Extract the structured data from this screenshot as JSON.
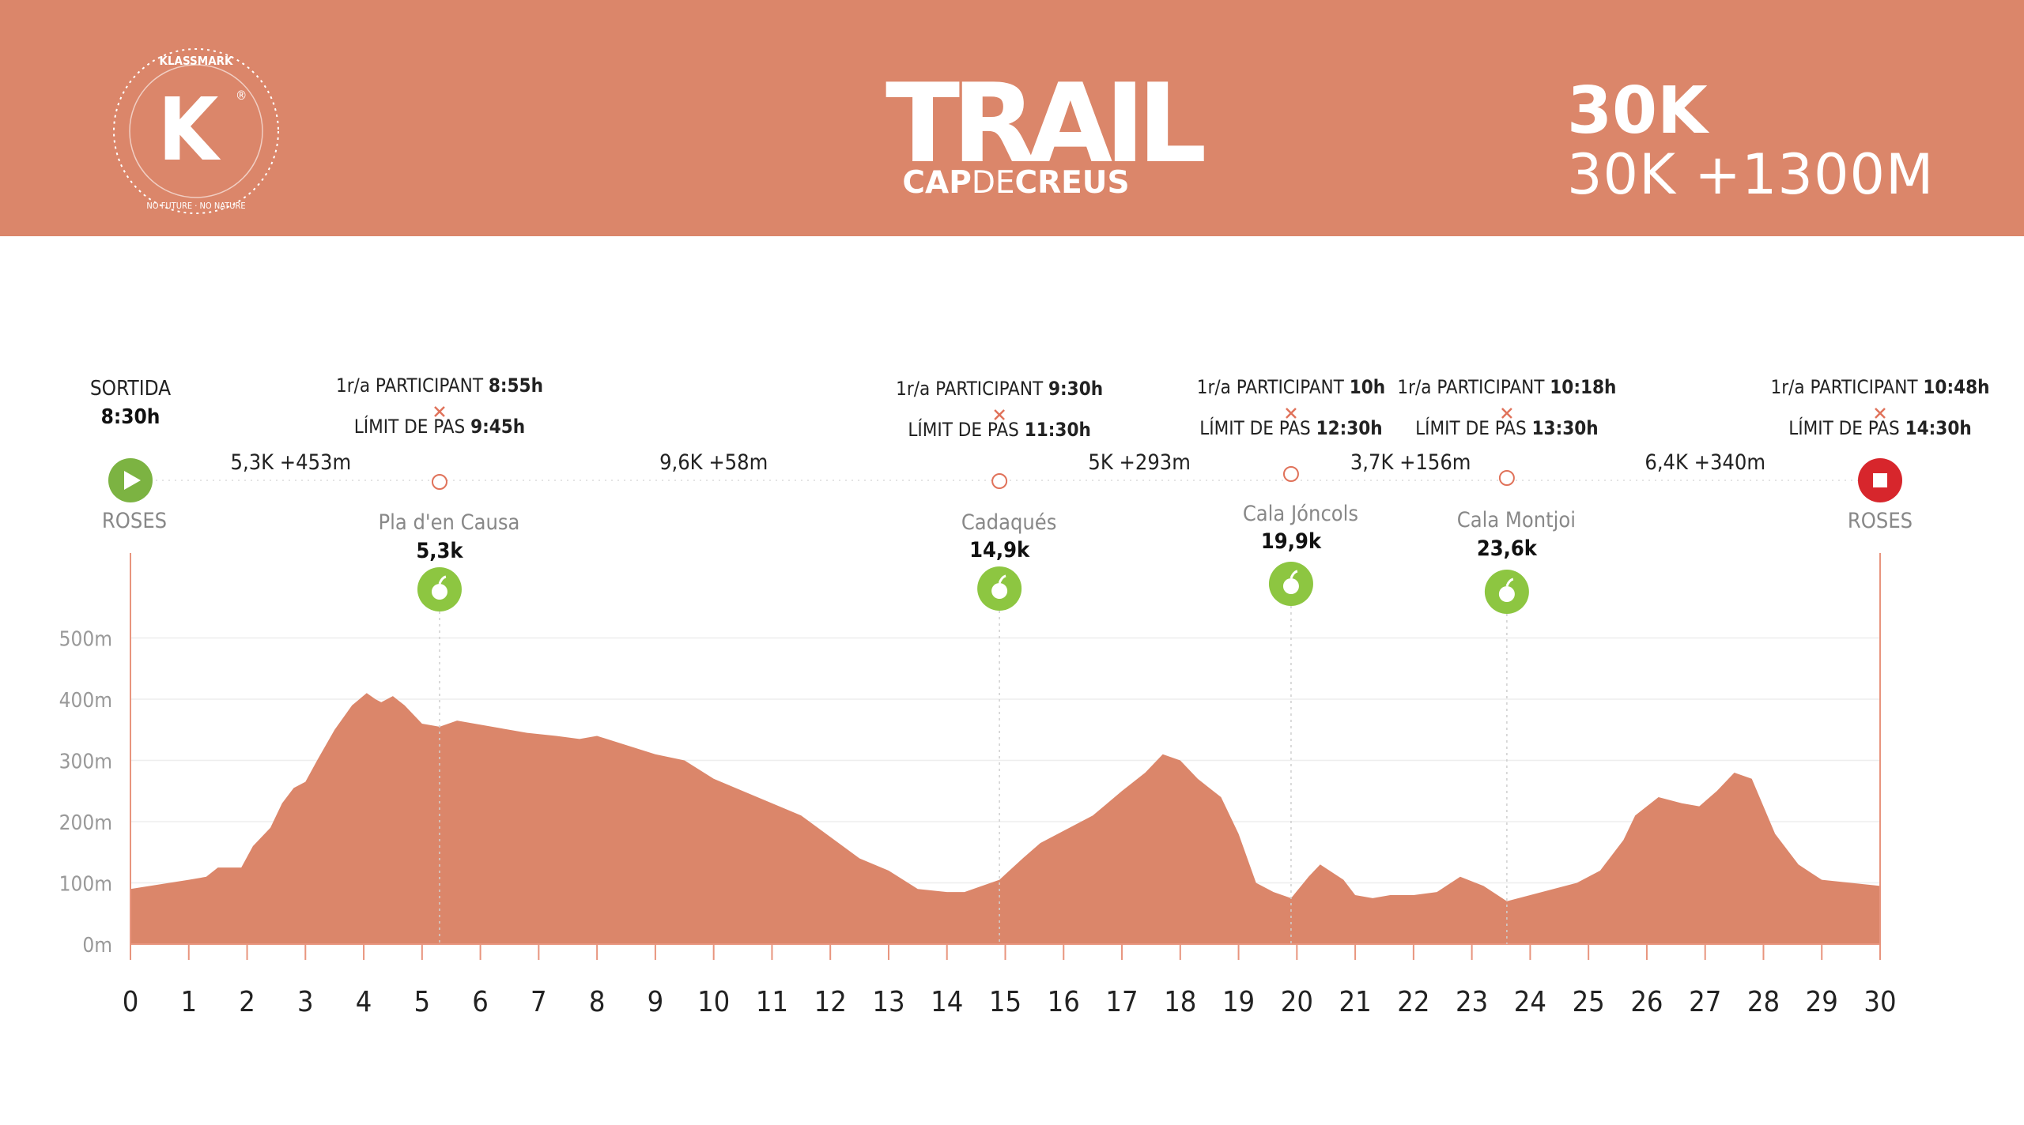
{
  "header": {
    "brand": "KLASSMARK",
    "brand_letter": "K",
    "brand_mark": "®",
    "brand_ring_text": "NO FUTURE · NO NATURE",
    "title": "TRAIL",
    "subtitle_bold_1": "CAP",
    "subtitle_light": "DE",
    "subtitle_bold_2": "CREUS",
    "distance": "30K",
    "distance_elevation": "30K +1300M",
    "colors": {
      "band": "#db866a",
      "text": "#ffffff"
    }
  },
  "chart_data": {
    "type": "area",
    "xlim": [
      0,
      30
    ],
    "ylim": [
      0,
      500
    ],
    "x_ticks": [
      0,
      1,
      2,
      3,
      4,
      5,
      6,
      7,
      8,
      9,
      10,
      11,
      12,
      13,
      14,
      15,
      16,
      17,
      18,
      19,
      20,
      21,
      22,
      23,
      24,
      25,
      26,
      27,
      28,
      29,
      30
    ],
    "y_ticks": [
      "0m",
      "100m",
      "200m",
      "300m",
      "400m",
      "500m"
    ],
    "y_tick_values": [
      0,
      100,
      200,
      300,
      400,
      500
    ],
    "grid": true,
    "series": [
      {
        "color": "#db866a",
        "x": [
          0,
          1,
          1.3,
          1.5,
          1.9,
          2.1,
          2.4,
          2.6,
          2.8,
          3.0,
          3.2,
          3.5,
          3.8,
          4.05,
          4.2,
          4.3,
          4.5,
          4.7,
          5.0,
          5.3,
          5.6,
          5.9,
          6.2,
          6.8,
          7.3,
          7.7,
          8.0,
          8.5,
          9.0,
          9.5,
          10.0,
          10.5,
          11.0,
          11.5,
          12.0,
          12.5,
          13.0,
          13.5,
          14.0,
          14.3,
          14.9,
          15.3,
          15.6,
          16.0,
          16.5,
          17.0,
          17.4,
          17.7,
          18.0,
          18.3,
          18.7,
          19.0,
          19.3,
          19.6,
          19.9,
          20.2,
          20.4,
          20.8,
          21.0,
          21.3,
          21.6,
          22.0,
          22.4,
          22.8,
          23.2,
          23.6,
          24.0,
          24.4,
          24.8,
          25.2,
          25.6,
          25.8,
          26.2,
          26.6,
          26.9,
          27.2,
          27.5,
          27.8,
          28.2,
          28.6,
          29.0,
          29.5,
          30.0
        ],
        "y": [
          90,
          105,
          110,
          125,
          125,
          160,
          190,
          230,
          255,
          265,
          300,
          350,
          390,
          410,
          400,
          395,
          405,
          390,
          360,
          355,
          365,
          360,
          355,
          345,
          340,
          335,
          340,
          325,
          310,
          300,
          270,
          250,
          230,
          210,
          175,
          140,
          120,
          90,
          85,
          85,
          105,
          140,
          165,
          185,
          210,
          250,
          280,
          310,
          300,
          270,
          240,
          180,
          100,
          85,
          75,
          110,
          130,
          105,
          80,
          75,
          80,
          80,
          85,
          110,
          95,
          70,
          80,
          90,
          100,
          120,
          170,
          210,
          240,
          230,
          225,
          250,
          280,
          270,
          180,
          130,
          105,
          100,
          95
        ]
      }
    ],
    "segments": [
      {
        "text": "5,3K +453m",
        "at": 2.75
      },
      {
        "text": "9,6K +58m",
        "at": 10.0
      },
      {
        "text": "5K +293m",
        "at": 17.3
      },
      {
        "text": "3,7K +156m",
        "at": 21.95
      },
      {
        "text": "6,4K +340m",
        "at": 27.0
      }
    ],
    "checkpoints": [
      {
        "km": 0,
        "kind": "start",
        "timing_label": "SORTIDA",
        "timing_time": "8:30h",
        "place": "ROSES"
      },
      {
        "km": 5.3,
        "kind": "aid",
        "first_label": "1r/a PARTICIPANT ",
        "first_time": "8:55h",
        "limit_label": "LÍMIT DE PAS ",
        "limit_time": "9:45h",
        "place": "Pla d'en Causa",
        "km_label": "5,3k",
        "icon": "apple-icon"
      },
      {
        "km": 14.9,
        "kind": "aid",
        "first_label": "1r/a PARTICIPANT ",
        "first_time": "9:30h",
        "limit_label": "LÍMIT DE PAS ",
        "limit_time": "11:30h",
        "place": "Cadaqués",
        "km_label": "14,9k",
        "icon": "apple-icon"
      },
      {
        "km": 19.9,
        "kind": "aid",
        "first_label": "1r/a PARTICIPANT ",
        "first_time": "10h",
        "limit_label": "LÍMIT DE PAS ",
        "limit_time": "12:30h",
        "place": "Cala Jóncols",
        "km_label": "19,9k",
        "icon": "apple-icon"
      },
      {
        "km": 23.6,
        "kind": "aid",
        "first_label": "1r/a PARTICIPANT ",
        "first_time": "10:18h",
        "limit_label": "LÍMIT DE PAS ",
        "limit_time": "13:30h",
        "place": "Cala Montjoi",
        "km_label": "23,6k",
        "icon": "apple-icon"
      },
      {
        "km": 30,
        "kind": "finish",
        "first_label": "1r/a PARTICIPANT ",
        "first_time": "10:48h",
        "limit_label": "LÍMIT DE PAS ",
        "limit_time": "14:30h",
        "place": "ROSES"
      }
    ],
    "colors": {
      "start": "#7cb342",
      "finish": "#d7262c",
      "aid": "#8dc641",
      "marker": "#e0725a"
    }
  }
}
